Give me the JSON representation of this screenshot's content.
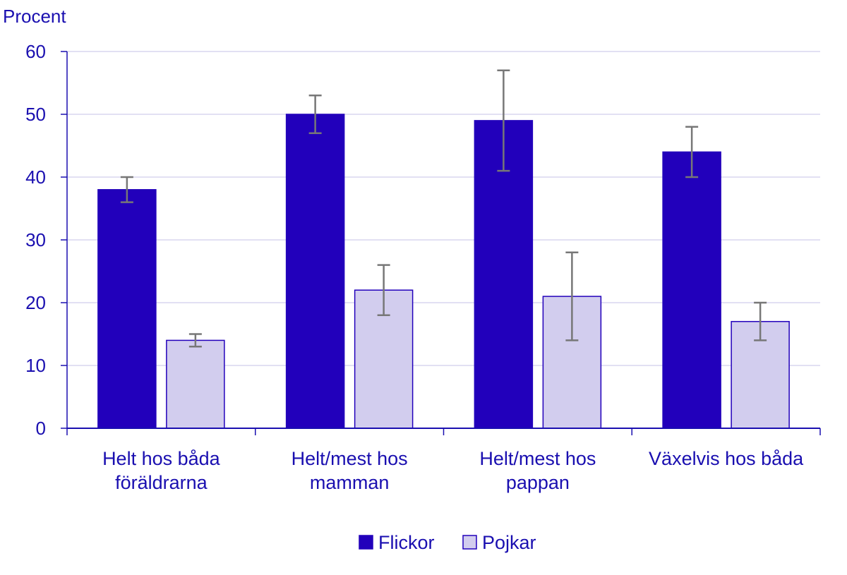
{
  "chart_data": {
    "type": "bar",
    "ylabel": "Procent",
    "xlabel": "",
    "title": "",
    "ylim": [
      0,
      60
    ],
    "yticks": [
      0,
      10,
      20,
      30,
      40,
      50,
      60
    ],
    "grid": true,
    "legend_position": "bottom-center",
    "categories": [
      [
        "Helt hos båda",
        "föräldrarna"
      ],
      [
        "Helt/mest hos",
        "mamman"
      ],
      [
        "Helt/mest hos",
        "pappan"
      ],
      [
        "Växelvis hos båda"
      ]
    ],
    "series": [
      {
        "name": "Flickor",
        "color": "#2200bb",
        "values": [
          38,
          50,
          49,
          44
        ],
        "error_low": [
          36,
          47,
          41,
          40
        ],
        "error_high": [
          40,
          53,
          57,
          48
        ]
      },
      {
        "name": "Pojkar",
        "color": "#d2cdee",
        "values": [
          14,
          22,
          21,
          17
        ],
        "error_low": [
          13,
          18,
          14,
          14
        ],
        "error_high": [
          15,
          26,
          28,
          20
        ]
      }
    ],
    "colors": {
      "text": "#1a0fb0",
      "axis": "#1a0fb0",
      "grid": "#d9d6ef",
      "error_bar": "#777777",
      "bar_outline": "#2200bb"
    }
  }
}
